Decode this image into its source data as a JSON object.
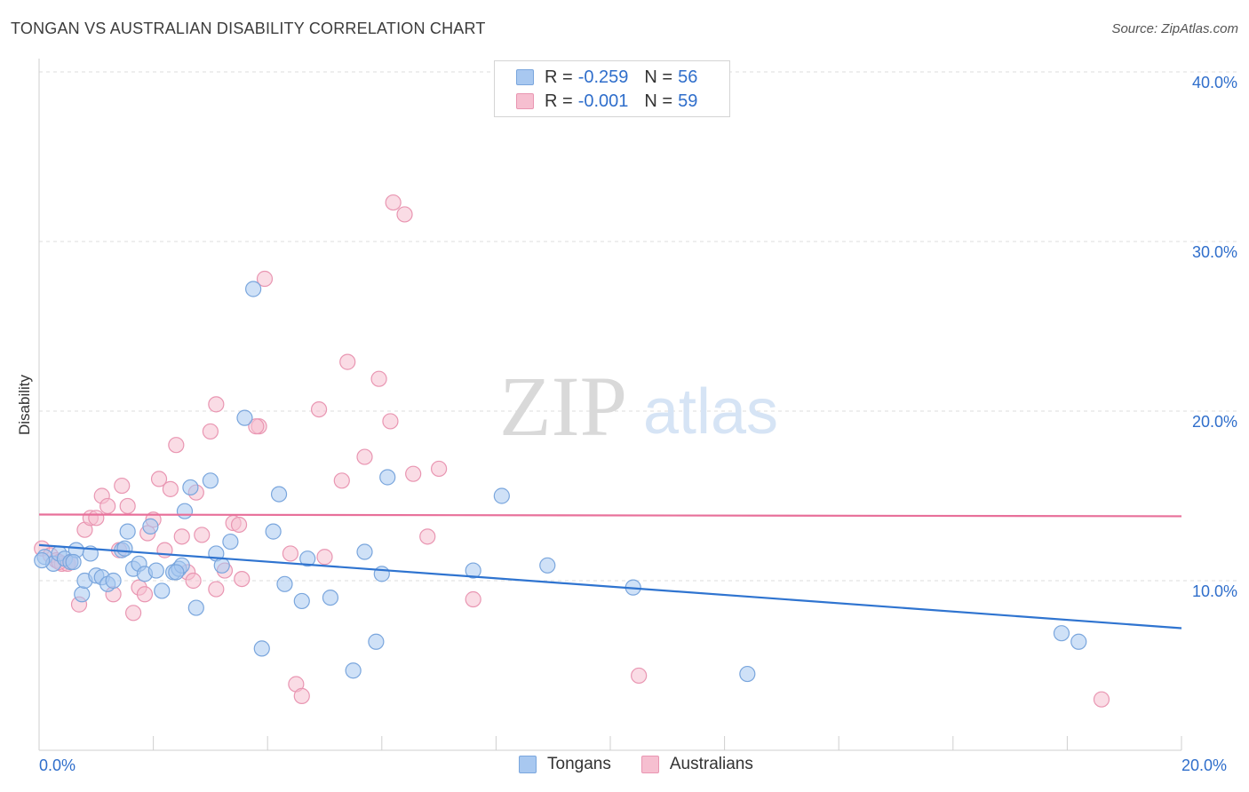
{
  "header": {
    "title": "TONGAN VS AUSTRALIAN DISABILITY CORRELATION CHART",
    "source": "Source: ZipAtlas.com"
  },
  "legend": {
    "rows": [
      {
        "r_label": "R =",
        "r_value": "-0.259",
        "n_label": "N =",
        "n_value": "56"
      },
      {
        "r_label": "R =",
        "r_value": "-0.001",
        "n_label": "N =",
        "n_value": "59"
      }
    ]
  },
  "bottom_legend": [
    "Tongans",
    "Australians"
  ],
  "axes": {
    "x_min_label": "0.0%",
    "x_max_label": "20.0%",
    "y_tick_labels": [
      "10.0%",
      "20.0%",
      "30.0%",
      "40.0%"
    ]
  },
  "colors": {
    "tongans_fill": "#a8c8f0",
    "tongans_stroke": "#7aa6dd",
    "tongans_line": "#2f74d0",
    "australians_fill": "#f6bfd0",
    "australians_stroke": "#e996b2",
    "australians_line": "#e8709a",
    "tick_label": "#2f6ecb"
  },
  "chart_data": {
    "type": "scatter",
    "title": "TONGAN VS AUSTRALIAN DISABILITY CORRELATION CHART",
    "xlabel": "",
    "ylabel": "Disability",
    "xlim": [
      0,
      20
    ],
    "ylim": [
      0,
      40
    ],
    "x_unit": "%",
    "y_unit": "%",
    "grid": true,
    "legend_position": "top-center",
    "series": [
      {
        "name": "Tongans",
        "R": -0.259,
        "N": 56,
        "trend": [
          [
            0,
            12.1
          ],
          [
            20,
            7.2
          ]
        ],
        "points": [
          [
            0.1,
            11.4
          ],
          [
            0.25,
            11.0
          ],
          [
            0.35,
            11.6
          ],
          [
            0.45,
            11.3
          ],
          [
            0.55,
            11.1
          ],
          [
            0.65,
            11.8
          ],
          [
            0.75,
            9.2
          ],
          [
            0.8,
            10.0
          ],
          [
            0.9,
            11.6
          ],
          [
            1.0,
            10.3
          ],
          [
            1.1,
            10.2
          ],
          [
            1.2,
            9.8
          ],
          [
            1.3,
            10.0
          ],
          [
            1.45,
            11.8
          ],
          [
            1.55,
            12.9
          ],
          [
            1.65,
            10.7
          ],
          [
            1.75,
            11.0
          ],
          [
            1.85,
            10.4
          ],
          [
            1.95,
            13.2
          ],
          [
            2.05,
            10.6
          ],
          [
            2.15,
            9.4
          ],
          [
            2.35,
            10.5
          ],
          [
            2.45,
            10.7
          ],
          [
            2.5,
            10.9
          ],
          [
            2.55,
            14.1
          ],
          [
            2.65,
            15.5
          ],
          [
            2.75,
            8.4
          ],
          [
            3.0,
            15.9
          ],
          [
            3.1,
            11.6
          ],
          [
            3.2,
            10.9
          ],
          [
            3.35,
            12.3
          ],
          [
            3.6,
            19.6
          ],
          [
            3.75,
            27.2
          ],
          [
            3.9,
            6.0
          ],
          [
            4.1,
            12.9
          ],
          [
            4.2,
            15.1
          ],
          [
            4.3,
            9.8
          ],
          [
            4.6,
            8.8
          ],
          [
            4.7,
            11.3
          ],
          [
            5.1,
            9.0
          ],
          [
            5.5,
            4.7
          ],
          [
            5.7,
            11.7
          ],
          [
            5.9,
            6.4
          ],
          [
            6.0,
            10.4
          ],
          [
            6.1,
            16.1
          ],
          [
            7.6,
            10.6
          ],
          [
            8.1,
            15.0
          ],
          [
            8.9,
            10.9
          ],
          [
            10.4,
            9.6
          ],
          [
            12.4,
            4.5
          ],
          [
            17.9,
            6.9
          ],
          [
            18.2,
            6.4
          ],
          [
            0.05,
            11.2
          ],
          [
            0.6,
            11.1
          ],
          [
            1.5,
            11.9
          ],
          [
            2.4,
            10.5
          ]
        ]
      },
      {
        "name": "Australians",
        "R": -0.001,
        "N": 59,
        "trend": [
          [
            0,
            13.9
          ],
          [
            20,
            13.8
          ]
        ],
        "points": [
          [
            0.05,
            11.9
          ],
          [
            0.2,
            11.5
          ],
          [
            0.3,
            11.2
          ],
          [
            0.4,
            11.0
          ],
          [
            0.5,
            11.0
          ],
          [
            0.55,
            11.1
          ],
          [
            0.7,
            8.6
          ],
          [
            0.8,
            13.0
          ],
          [
            0.9,
            13.7
          ],
          [
            1.0,
            13.7
          ],
          [
            1.1,
            15.0
          ],
          [
            1.2,
            14.4
          ],
          [
            1.3,
            9.2
          ],
          [
            1.4,
            11.8
          ],
          [
            1.45,
            15.6
          ],
          [
            1.55,
            14.4
          ],
          [
            1.65,
            8.1
          ],
          [
            1.75,
            9.6
          ],
          [
            1.85,
            9.2
          ],
          [
            1.9,
            12.8
          ],
          [
            2.0,
            13.6
          ],
          [
            2.1,
            16.0
          ],
          [
            2.2,
            11.8
          ],
          [
            2.3,
            15.4
          ],
          [
            2.4,
            18.0
          ],
          [
            2.5,
            12.6
          ],
          [
            2.6,
            10.5
          ],
          [
            2.7,
            10.0
          ],
          [
            2.75,
            15.2
          ],
          [
            2.85,
            12.7
          ],
          [
            3.0,
            18.8
          ],
          [
            3.1,
            9.5
          ],
          [
            3.1,
            20.4
          ],
          [
            3.25,
            10.6
          ],
          [
            3.4,
            13.4
          ],
          [
            3.5,
            13.3
          ],
          [
            3.55,
            10.1
          ],
          [
            3.85,
            19.1
          ],
          [
            3.95,
            27.8
          ],
          [
            4.4,
            11.6
          ],
          [
            4.5,
            3.9
          ],
          [
            4.6,
            3.2
          ],
          [
            4.9,
            20.1
          ],
          [
            5.0,
            11.4
          ],
          [
            5.3,
            15.9
          ],
          [
            5.4,
            22.9
          ],
          [
            5.7,
            17.3
          ],
          [
            5.95,
            21.9
          ],
          [
            6.15,
            19.4
          ],
          [
            6.2,
            32.3
          ],
          [
            6.4,
            31.6
          ],
          [
            6.55,
            16.3
          ],
          [
            6.8,
            12.6
          ],
          [
            7.0,
            16.6
          ],
          [
            7.6,
            8.9
          ],
          [
            10.5,
            4.4
          ],
          [
            18.6,
            3.0
          ],
          [
            3.8,
            19.1
          ],
          [
            0.35,
            11.1
          ]
        ]
      }
    ]
  }
}
